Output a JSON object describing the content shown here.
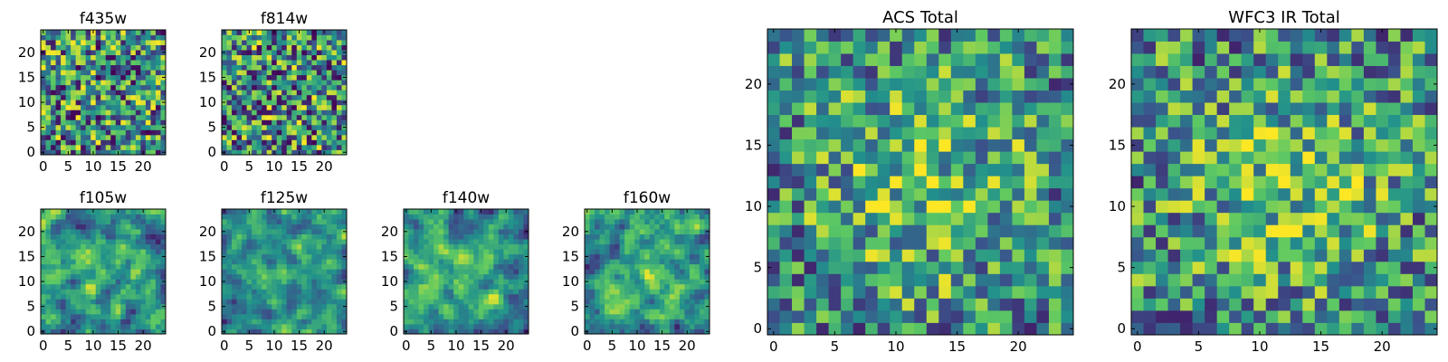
{
  "figure": {
    "colormap": [
      "#440154",
      "#3b528b",
      "#21918c",
      "#5ec962",
      "#fde725"
    ],
    "axis_color": "#000000",
    "background": "#ffffff"
  },
  "chart_data": [
    {
      "type": "heatmap",
      "title": "f435w",
      "grid_size": 25,
      "xlim": [
        -0.5,
        24.5
      ],
      "ylim": [
        -0.5,
        24.5
      ],
      "xticks": [
        0,
        5,
        10,
        15,
        20
      ],
      "yticks": [
        0,
        5,
        10,
        15,
        20
      ],
      "seed": 11,
      "smooth": 0,
      "center_boost": 0.0
    },
    {
      "type": "heatmap",
      "title": "f814w",
      "grid_size": 25,
      "xlim": [
        -0.5,
        24.5
      ],
      "ylim": [
        -0.5,
        24.5
      ],
      "xticks": [
        0,
        5,
        10,
        15,
        20
      ],
      "yticks": [
        0,
        5,
        10,
        15,
        20
      ],
      "seed": 23,
      "smooth": 0,
      "center_boost": 0.0
    },
    {
      "type": "heatmap",
      "title": "f105w",
      "grid_size": 25,
      "xlim": [
        -0.5,
        24.5
      ],
      "ylim": [
        -0.5,
        24.5
      ],
      "xticks": [
        0,
        5,
        10,
        15,
        20
      ],
      "yticks": [
        0,
        5,
        10,
        15,
        20
      ],
      "seed": 37,
      "smooth": 1,
      "center_boost": 0.15
    },
    {
      "type": "heatmap",
      "title": "f125w",
      "grid_size": 25,
      "xlim": [
        -0.5,
        24.5
      ],
      "ylim": [
        -0.5,
        24.5
      ],
      "xticks": [
        0,
        5,
        10,
        15,
        20
      ],
      "yticks": [
        0,
        5,
        10,
        15,
        20
      ],
      "seed": 41,
      "smooth": 1,
      "center_boost": 0.15
    },
    {
      "type": "heatmap",
      "title": "f140w",
      "grid_size": 25,
      "xlim": [
        -0.5,
        24.5
      ],
      "ylim": [
        -0.5,
        24.5
      ],
      "xticks": [
        0,
        5,
        10,
        15,
        20
      ],
      "yticks": [
        0,
        5,
        10,
        15,
        20
      ],
      "seed": 53,
      "smooth": 1,
      "center_boost": 0.15
    },
    {
      "type": "heatmap",
      "title": "f160w",
      "grid_size": 25,
      "xlim": [
        -0.5,
        24.5
      ],
      "ylim": [
        -0.5,
        24.5
      ],
      "xticks": [
        0,
        5,
        10,
        15,
        20
      ],
      "yticks": [
        0,
        5,
        10,
        15,
        20
      ],
      "seed": 67,
      "smooth": 1,
      "center_boost": 0.15
    },
    {
      "type": "heatmap",
      "title": "ACS Total",
      "grid_size": 25,
      "xlim": [
        -0.5,
        24.5
      ],
      "ylim": [
        -0.5,
        24.5
      ],
      "xticks": [
        0,
        5,
        10,
        15,
        20
      ],
      "yticks": [
        0,
        5,
        10,
        15,
        20
      ],
      "seed": 79,
      "smooth": 0,
      "center_boost": 0.25
    },
    {
      "type": "heatmap",
      "title": "WFC3 IR Total",
      "grid_size": 25,
      "xlim": [
        -0.5,
        24.5
      ],
      "ylim": [
        -0.5,
        24.5
      ],
      "xticks": [
        0,
        5,
        10,
        15,
        20
      ],
      "yticks": [
        0,
        5,
        10,
        15,
        20
      ],
      "seed": 97,
      "smooth": 0,
      "center_boost": 0.25
    }
  ]
}
